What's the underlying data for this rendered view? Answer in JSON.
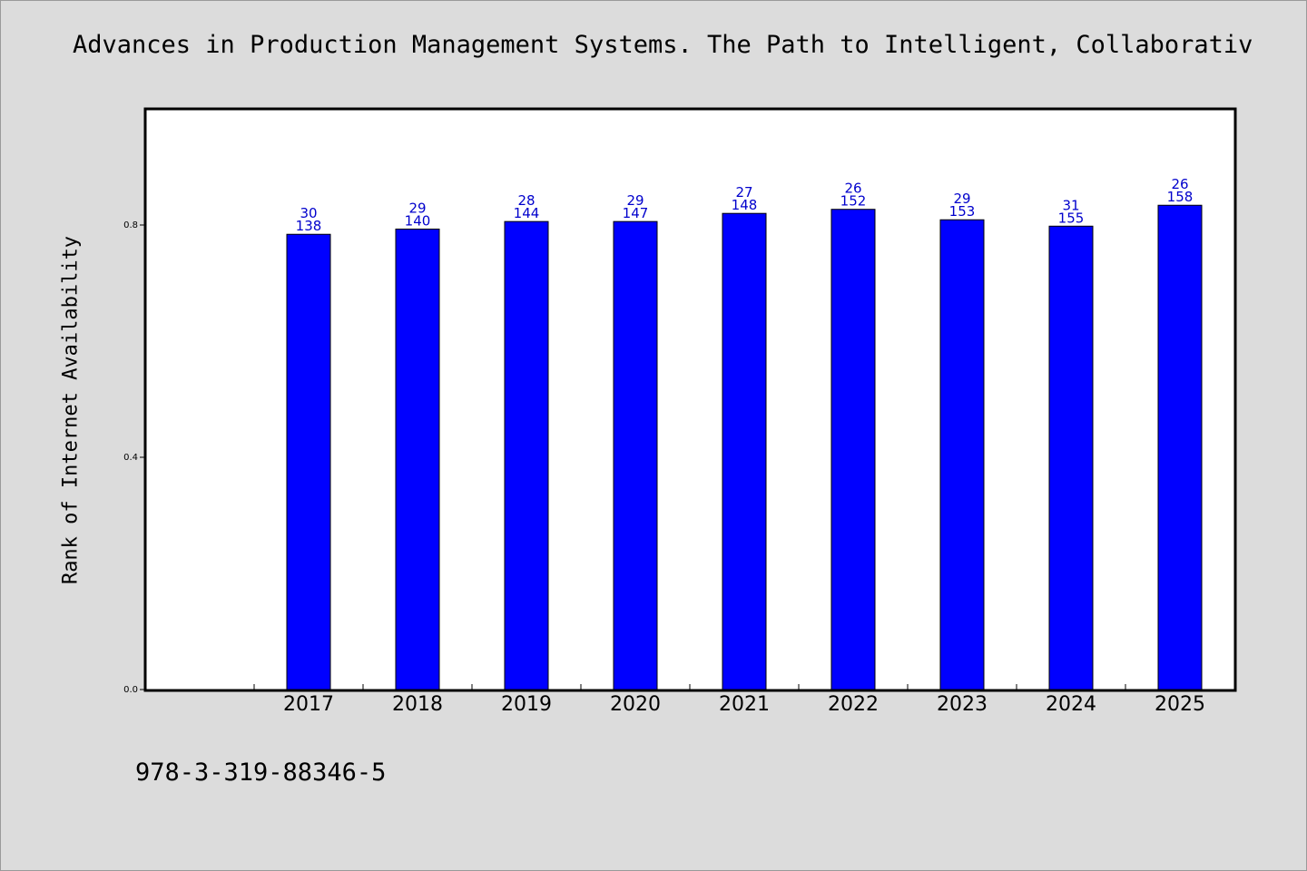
{
  "chart_data": {
    "type": "bar",
    "title": "Advances in Production Management Systems. The Path to Intelligent, Collaborativ",
    "ylabel": "Rank of Internet Availability",
    "xlabel": "",
    "categories": [
      "2017",
      "2018",
      "2019",
      "2020",
      "2021",
      "2022",
      "2023",
      "2024",
      "2025"
    ],
    "values": [
      0.784,
      0.793,
      0.806,
      0.806,
      0.82,
      0.827,
      0.809,
      0.798,
      0.834
    ],
    "labels_bottom": [
      "138",
      "140",
      "144",
      "147",
      "148",
      "152",
      "153",
      "155",
      "158"
    ],
    "labels_top": [
      "30",
      "29",
      "28",
      "29",
      "27",
      "26",
      "29",
      "31",
      "26"
    ],
    "ylim": [
      0,
      1.0
    ],
    "yticks": [
      "0.0",
      "0.4",
      "0.8"
    ],
    "grid": false,
    "bar_color": "#0000ff",
    "label_color": "#0000cc"
  },
  "footer_text": "978-3-319-88346-5"
}
